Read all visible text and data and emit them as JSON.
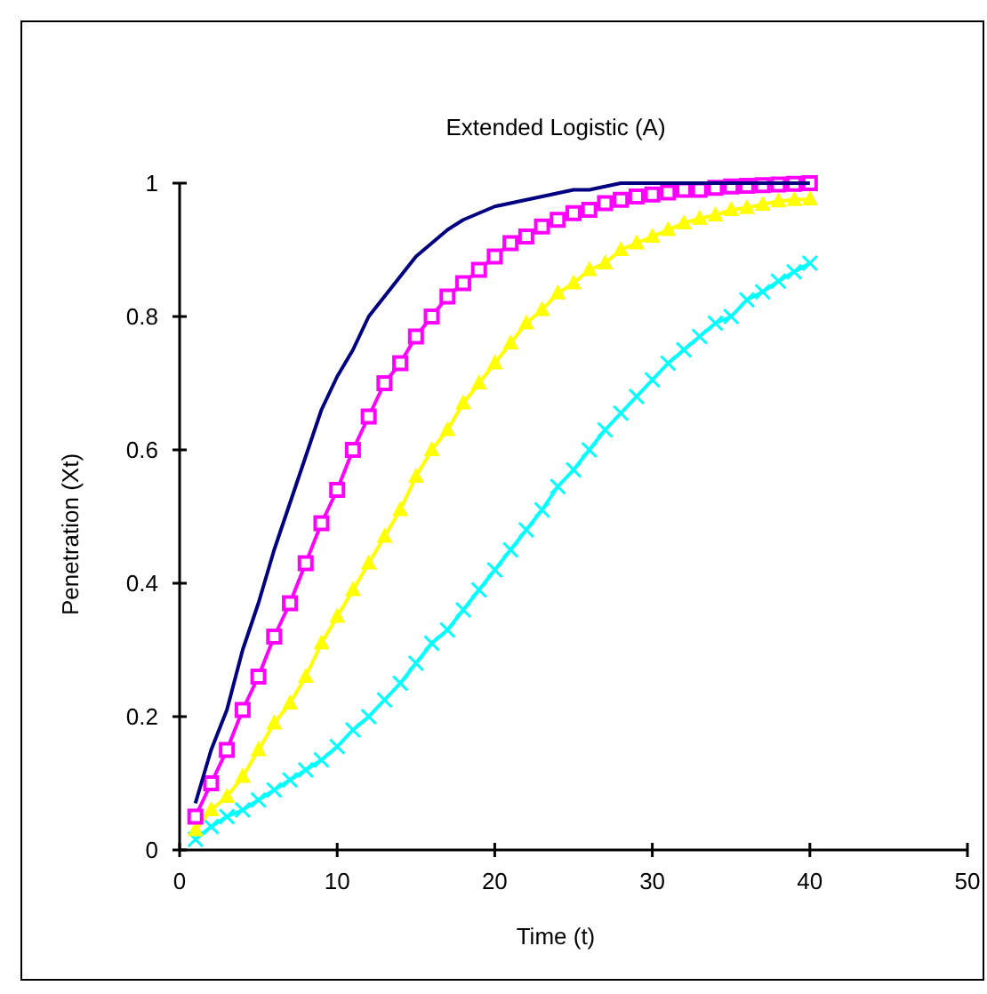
{
  "chart_data": {
    "type": "line",
    "title": "Extended Logistic (A)",
    "xlabel": "Time (t)",
    "ylabel": "Penetration (Xt)",
    "x": [
      1,
      2,
      3,
      4,
      5,
      6,
      7,
      8,
      9,
      10,
      11,
      12,
      13,
      14,
      15,
      16,
      17,
      18,
      19,
      20,
      21,
      22,
      23,
      24,
      25,
      26,
      27,
      28,
      29,
      30,
      31,
      32,
      33,
      34,
      35,
      36,
      37,
      38,
      39,
      40
    ],
    "series": [
      {
        "color": "#000080",
        "marker": "none",
        "values": [
          0.07,
          0.15,
          0.21,
          0.3,
          0.37,
          0.45,
          0.52,
          0.59,
          0.66,
          0.71,
          0.75,
          0.8,
          0.83,
          0.86,
          0.89,
          0.91,
          0.93,
          0.945,
          0.955,
          0.965,
          0.97,
          0.975,
          0.98,
          0.985,
          0.99,
          0.99,
          0.995,
          1,
          1,
          1,
          1,
          1,
          1,
          1,
          1,
          1,
          1,
          1,
          1,
          1
        ]
      },
      {
        "color": "#ff00ff",
        "marker": "square",
        "values": [
          0.05,
          0.1,
          0.15,
          0.21,
          0.26,
          0.32,
          0.37,
          0.43,
          0.49,
          0.54,
          0.6,
          0.65,
          0.7,
          0.73,
          0.77,
          0.8,
          0.83,
          0.85,
          0.87,
          0.89,
          0.91,
          0.92,
          0.935,
          0.945,
          0.955,
          0.96,
          0.97,
          0.975,
          0.98,
          0.983,
          0.986,
          0.99,
          0.99,
          0.993,
          0.995,
          0.996,
          0.997,
          0.998,
          0.999,
          1.0
        ]
      },
      {
        "color": "#ffff00",
        "marker": "triangle",
        "values": [
          0.03,
          0.06,
          0.08,
          0.11,
          0.15,
          0.19,
          0.22,
          0.26,
          0.31,
          0.35,
          0.39,
          0.43,
          0.47,
          0.51,
          0.56,
          0.6,
          0.63,
          0.67,
          0.7,
          0.73,
          0.76,
          0.79,
          0.81,
          0.835,
          0.85,
          0.87,
          0.88,
          0.9,
          0.91,
          0.92,
          0.93,
          0.94,
          0.947,
          0.952,
          0.96,
          0.963,
          0.968,
          0.973,
          0.975,
          0.976
        ]
      },
      {
        "color": "#00ffff",
        "marker": "cross",
        "values": [
          0.016,
          0.035,
          0.05,
          0.06,
          0.075,
          0.09,
          0.105,
          0.12,
          0.135,
          0.155,
          0.18,
          0.2,
          0.225,
          0.25,
          0.28,
          0.31,
          0.33,
          0.36,
          0.39,
          0.42,
          0.45,
          0.48,
          0.51,
          0.545,
          0.57,
          0.6,
          0.63,
          0.655,
          0.68,
          0.705,
          0.73,
          0.75,
          0.77,
          0.79,
          0.8,
          0.825,
          0.837,
          0.853,
          0.867,
          0.88
        ]
      }
    ],
    "xlim": [
      0,
      50
    ],
    "xticks": [
      0,
      10,
      20,
      30,
      40,
      50
    ],
    "ylim": [
      0,
      1
    ],
    "yticks": [
      0,
      0.2,
      0.4,
      0.6,
      0.8,
      1
    ],
    "grid": false
  }
}
